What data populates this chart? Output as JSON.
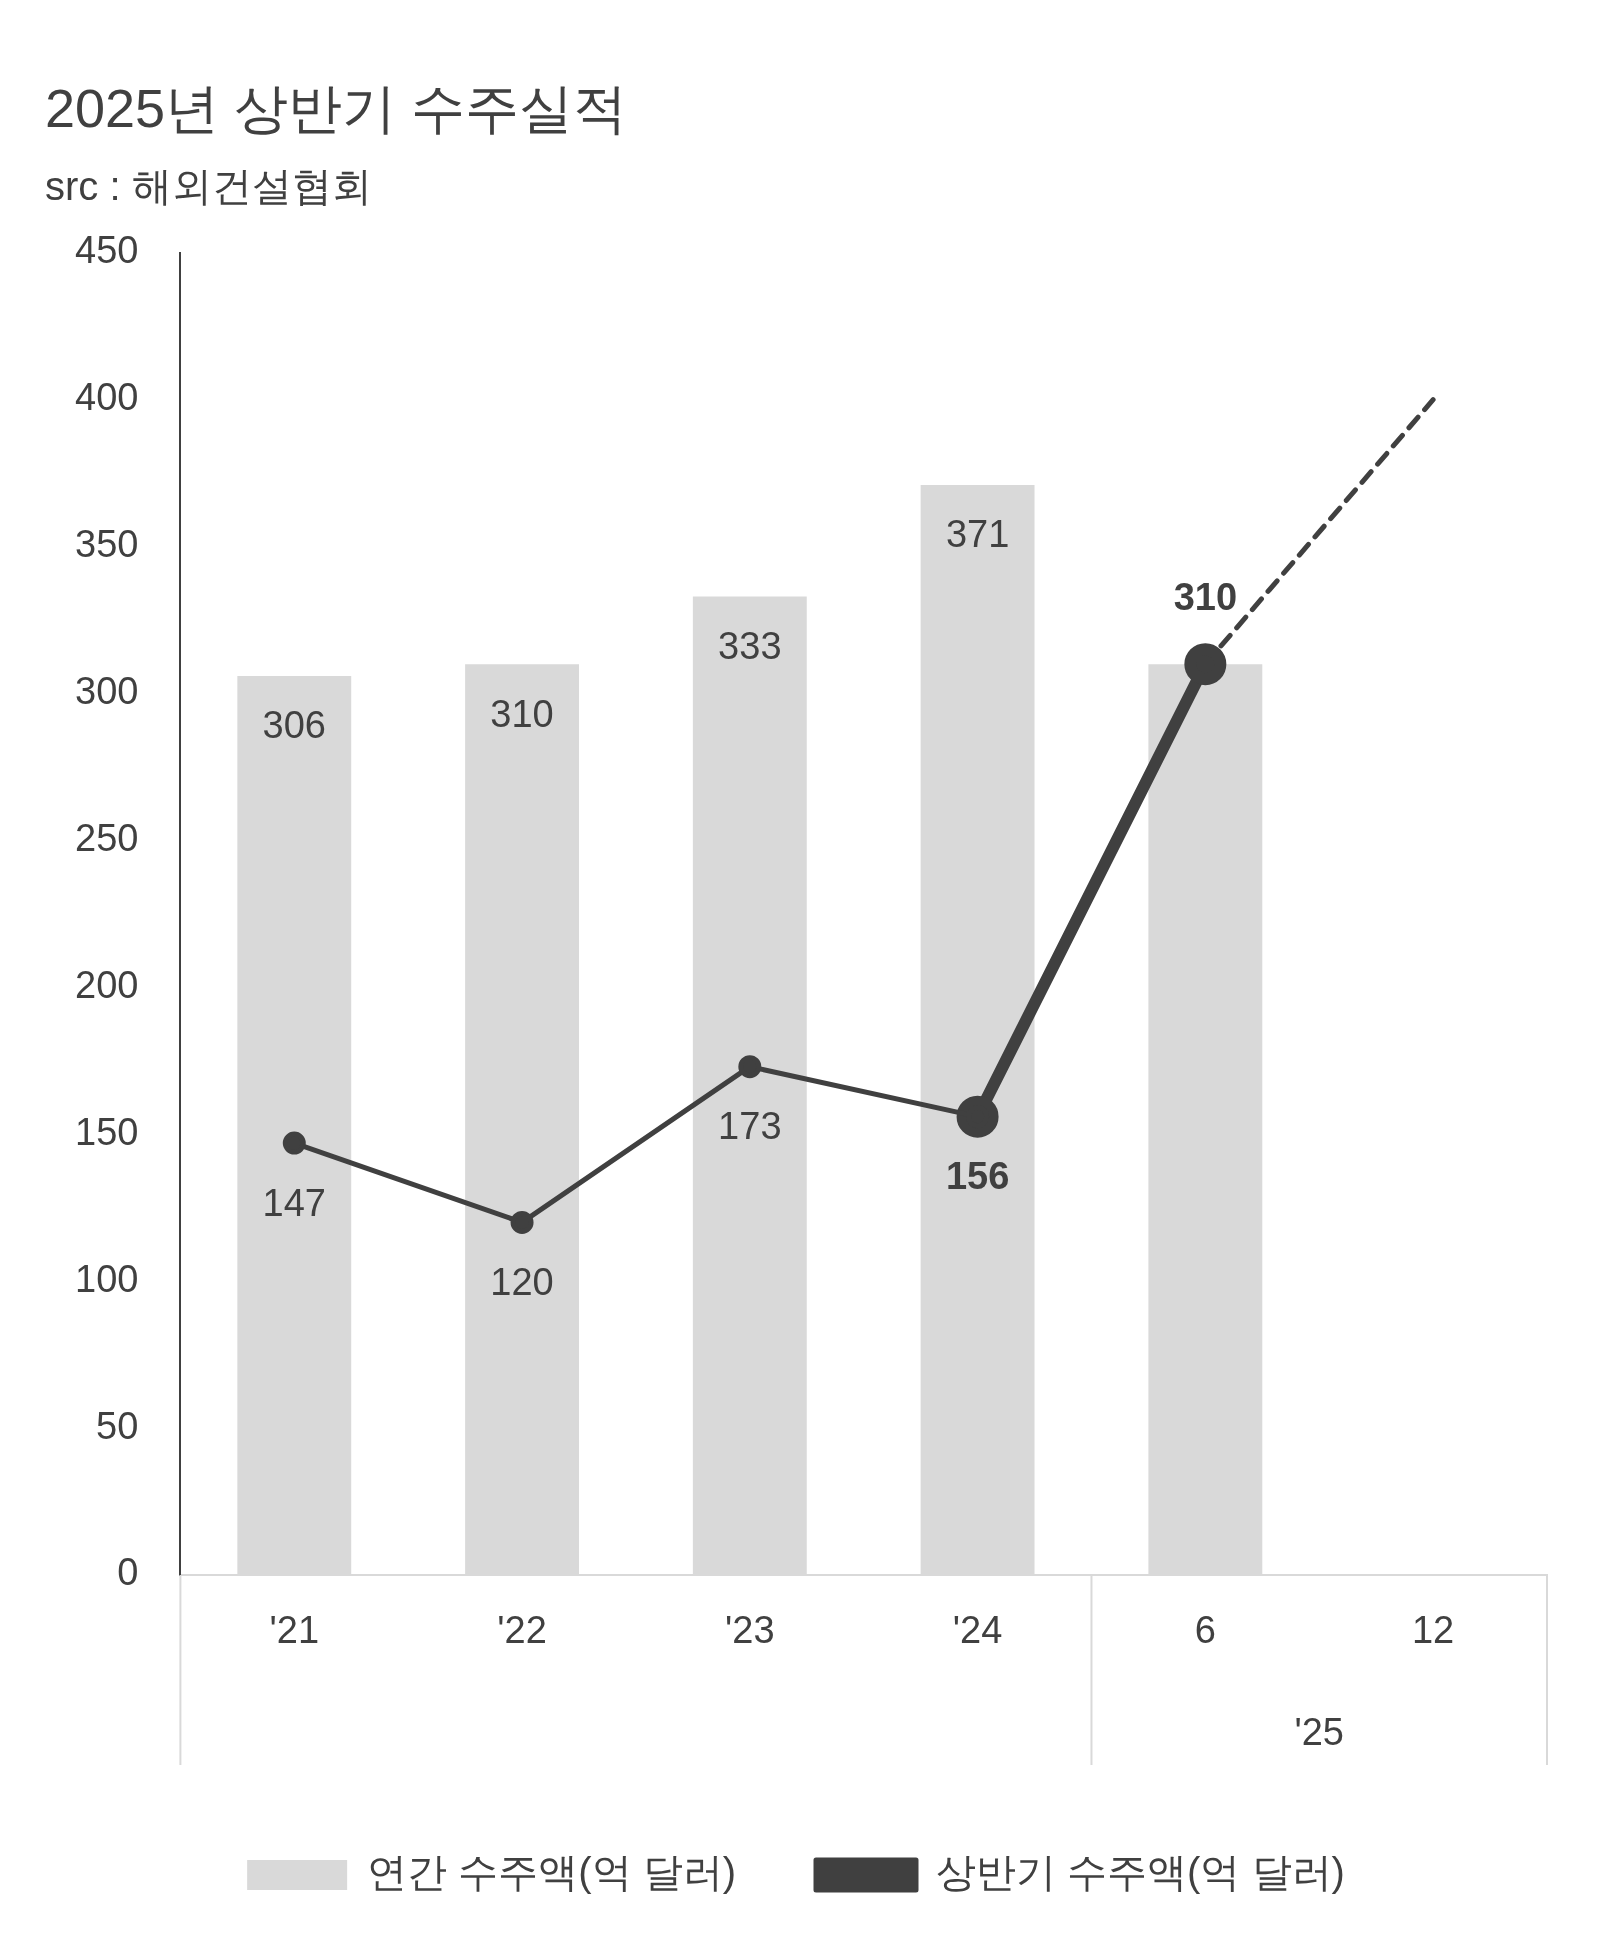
{
  "chart_data": {
    "type": "bar",
    "title": "2025년 상반기 수주실적",
    "subtitle": "src : 해외건설협회",
    "categories": [
      "'21",
      "'22",
      "'23",
      "'24",
      "6",
      "12"
    ],
    "annotations": [
      "'25"
    ],
    "series": [
      {
        "name": "연간 수주액(억 달러)",
        "color": "#d9d9d9",
        "values": [
          306,
          310,
          333,
          371,
          310,
          null
        ],
        "value_labels": [
          "306",
          "310",
          "333",
          "371",
          null,
          null
        ]
      },
      {
        "name": "상반기 수주액(억 달러)",
        "type": "line",
        "color": "#404040",
        "marker": "circle",
        "values": [
          147,
          120,
          173,
          156,
          null,
          null
        ],
        "value_labels": [
          "147",
          "120",
          "173",
          null,
          null,
          null
        ]
      },
      {
        "type": "line",
        "color": "#404040",
        "marker": "circle",
        "values": [
          null,
          null,
          null,
          156,
          310,
          null
        ],
        "value_labels": [
          null,
          null,
          null,
          "156",
          "310",
          null
        ]
      },
      {
        "type": "line",
        "color": "#404040",
        "marker": "none",
        "line_style": "dashed",
        "values": [
          null,
          null,
          null,
          null,
          310,
          400
        ]
      }
    ],
    "ylim": [
      0,
      450
    ],
    "yticks": [
      0,
      50,
      100,
      150,
      200,
      250,
      300,
      350,
      400,
      450
    ],
    "grid": false,
    "legend": "bottom"
  }
}
